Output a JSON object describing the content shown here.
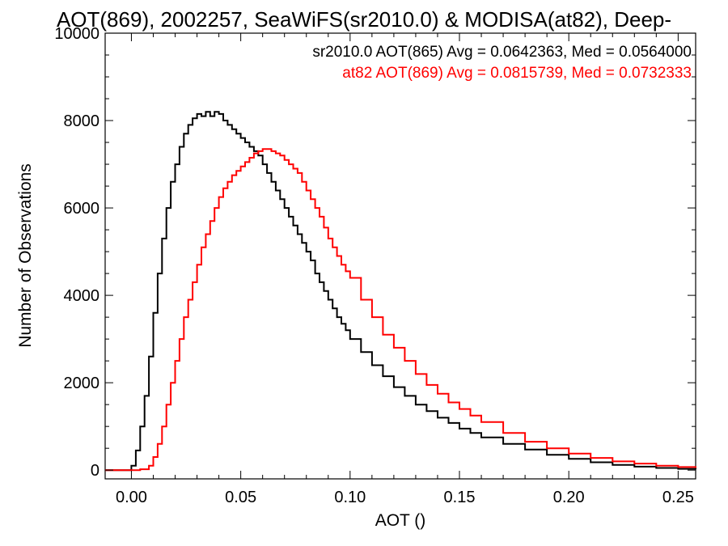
{
  "chart_data": {
    "type": "line",
    "title": "AOT(869), 2002257, SeaWiFS(sr2010.0) & MODISA(at82), Deep-",
    "xlabel": "AOT ()",
    "ylabel": "Number of Observations",
    "xlim": [
      -0.012,
      0.258
    ],
    "ylim": [
      -200,
      10000
    ],
    "x_ticks": [
      0.0,
      0.05,
      0.1,
      0.15,
      0.2,
      0.25
    ],
    "x_tick_labels": [
      "0.00",
      "0.05",
      "0.10",
      "0.15",
      "0.20",
      "0.25"
    ],
    "y_ticks": [
      0,
      2000,
      4000,
      6000,
      8000,
      10000
    ],
    "y_tick_labels": [
      "0",
      "2000",
      "4000",
      "6000",
      "8000",
      "10000"
    ],
    "grid": false,
    "step": true,
    "annotations": [
      {
        "text": "sr2010.0 AOT(865) Avg = 0.0642363, Med = 0.0564000",
        "color": "#000000"
      },
      {
        "text": "at82 AOT(869) Avg = 0.0815739, Med = 0.0732333",
        "color": "#ff0000"
      }
    ],
    "series": [
      {
        "color": "#000000",
        "x": [
          -0.012,
          -0.004,
          0.0,
          0.002,
          0.004,
          0.006,
          0.008,
          0.01,
          0.012,
          0.014,
          0.016,
          0.018,
          0.02,
          0.022,
          0.024,
          0.026,
          0.028,
          0.03,
          0.032,
          0.034,
          0.036,
          0.038,
          0.04,
          0.042,
          0.044,
          0.046,
          0.048,
          0.05,
          0.052,
          0.054,
          0.056,
          0.058,
          0.06,
          0.062,
          0.064,
          0.066,
          0.068,
          0.07,
          0.072,
          0.074,
          0.076,
          0.078,
          0.08,
          0.082,
          0.084,
          0.086,
          0.088,
          0.09,
          0.092,
          0.094,
          0.096,
          0.098,
          0.1,
          0.105,
          0.11,
          0.115,
          0.12,
          0.125,
          0.13,
          0.135,
          0.14,
          0.145,
          0.15,
          0.155,
          0.16,
          0.17,
          0.18,
          0.19,
          0.2,
          0.21,
          0.22,
          0.23,
          0.24,
          0.25,
          0.258
        ],
        "y": [
          0,
          0,
          100,
          450,
          1000,
          1700,
          2600,
          3600,
          4500,
          5300,
          6000,
          6600,
          7000,
          7400,
          7700,
          7900,
          8050,
          8150,
          8100,
          8200,
          8100,
          8200,
          8150,
          8000,
          7900,
          7800,
          7700,
          7600,
          7500,
          7400,
          7300,
          7200,
          7000,
          6800,
          6600,
          6400,
          6200,
          6000,
          5800,
          5600,
          5400,
          5200,
          5000,
          4800,
          4500,
          4300,
          4100,
          3900,
          3700,
          3500,
          3350,
          3200,
          3000,
          2700,
          2400,
          2150,
          1900,
          1700,
          1500,
          1350,
          1200,
          1080,
          950,
          850,
          750,
          600,
          470,
          350,
          260,
          180,
          120,
          80,
          50,
          30,
          20
        ]
      },
      {
        "color": "#ff0000",
        "x": [
          -0.012,
          0.0,
          0.004,
          0.008,
          0.01,
          0.012,
          0.014,
          0.016,
          0.018,
          0.02,
          0.022,
          0.024,
          0.026,
          0.028,
          0.03,
          0.032,
          0.034,
          0.036,
          0.038,
          0.04,
          0.042,
          0.044,
          0.046,
          0.048,
          0.05,
          0.052,
          0.054,
          0.056,
          0.058,
          0.06,
          0.062,
          0.064,
          0.066,
          0.068,
          0.07,
          0.072,
          0.074,
          0.076,
          0.078,
          0.08,
          0.082,
          0.084,
          0.086,
          0.088,
          0.09,
          0.092,
          0.094,
          0.096,
          0.098,
          0.1,
          0.105,
          0.11,
          0.115,
          0.12,
          0.125,
          0.13,
          0.135,
          0.14,
          0.145,
          0.15,
          0.155,
          0.16,
          0.17,
          0.18,
          0.19,
          0.2,
          0.21,
          0.22,
          0.23,
          0.24,
          0.25,
          0.258
        ],
        "y": [
          0,
          0,
          20,
          100,
          300,
          600,
          1000,
          1500,
          2000,
          2500,
          3000,
          3500,
          3900,
          4300,
          4700,
          5100,
          5400,
          5700,
          6000,
          6250,
          6450,
          6600,
          6750,
          6850,
          6950,
          7050,
          7150,
          7250,
          7300,
          7350,
          7350,
          7300,
          7250,
          7200,
          7100,
          7000,
          6900,
          6800,
          6600,
          6400,
          6200,
          6000,
          5800,
          5550,
          5300,
          5100,
          4900,
          4700,
          4550,
          4400,
          3900,
          3500,
          3100,
          2800,
          2500,
          2200,
          1950,
          1750,
          1550,
          1400,
          1250,
          1100,
          850,
          650,
          500,
          380,
          280,
          200,
          150,
          100,
          70,
          50
        ]
      }
    ]
  }
}
